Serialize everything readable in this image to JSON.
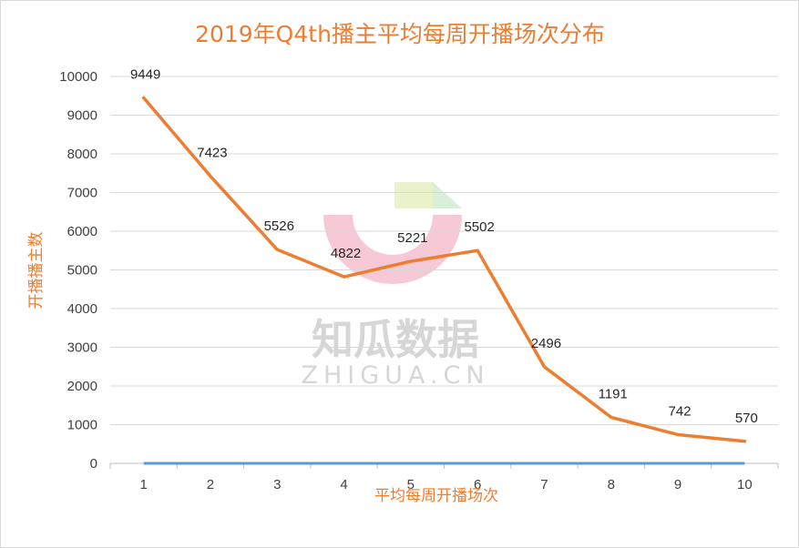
{
  "watermark": {
    "brand_cn": "知瓜数据",
    "brand_en": "ZHIGUA.CN"
  },
  "colors": {
    "title": "#ED7D31",
    "line": "#ED7D31",
    "baseline": "#5B9BD5",
    "grid": "#d9d9d9",
    "tick_text": "#404040"
  },
  "chart_data": {
    "type": "line",
    "title": "2019年Q4th播主平均每周开播场次分布",
    "xlabel": "平均每周开播场次",
    "ylabel": "开播播主数",
    "categories": [
      "1",
      "2",
      "3",
      "4",
      "5",
      "6",
      "7",
      "8",
      "9",
      "10"
    ],
    "ylim": [
      0,
      10000
    ],
    "yticks": [
      0,
      1000,
      2000,
      3000,
      4000,
      5000,
      6000,
      7000,
      8000,
      9000,
      10000
    ],
    "grid": true,
    "legend": "none",
    "series": [
      {
        "values": [
          9449,
          7423,
          5526,
          4822,
          5221,
          5502,
          2496,
          1191,
          742,
          570
        ],
        "data_labels": [
          "9449",
          "7423",
          "5526",
          "4822",
          "5221",
          "5502",
          "2496",
          "1191",
          "742",
          "570"
        ]
      },
      {
        "values": [
          0,
          0,
          0,
          0,
          0,
          0,
          0,
          0,
          0,
          0
        ]
      }
    ]
  }
}
